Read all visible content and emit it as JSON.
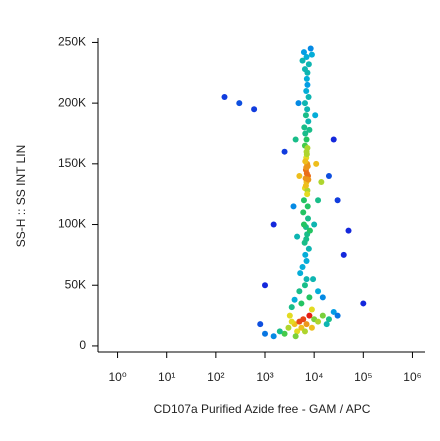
{
  "chart_data": {
    "type": "scatter",
    "x_label": "CD107a Purified Azide free - GAM / APC",
    "y_label": "SS-H :: SS INT LIN",
    "x_scale": "log",
    "xlim": [
      0.4,
      1800000
    ],
    "xticks": [
      {
        "value": 1,
        "label": "10⁰"
      },
      {
        "value": 10,
        "label": "10¹"
      },
      {
        "value": 100,
        "label": "10²"
      },
      {
        "value": 1000,
        "label": "10³"
      },
      {
        "value": 10000,
        "label": "10⁴"
      },
      {
        "value": 100000,
        "label": "10⁵"
      },
      {
        "value": 1000000,
        "label": "10⁶"
      }
    ],
    "ylim": [
      -5000,
      252000
    ],
    "yticks": [
      0,
      {
        "value": 50000,
        "label": "50K"
      },
      {
        "value": 100000,
        "label": "100K"
      },
      {
        "value": 150000,
        "label": "150K"
      },
      {
        "value": 200000,
        "label": "200K"
      },
      {
        "value": 250000,
        "label": "250K"
      }
    ],
    "x": [
      6500,
      7000,
      7500,
      6800,
      7200,
      6900,
      7300,
      6700,
      7100,
      7400,
      6600,
      7000,
      7200,
      6800,
      7600,
      6900,
      7100,
      6500,
      7300,
      7000,
      6000,
      7500,
      6800,
      7200,
      6400,
      7800,
      6600,
      7000,
      5800,
      7400,
      6200,
      8200,
      6900,
      6300,
      7600,
      6800,
      7200,
      6500,
      7700,
      6900,
      7300,
      6600,
      8000,
      7100,
      6200,
      6500,
      7800,
      7000,
      6200,
      8500,
      7300,
      5800,
      9000,
      4500,
      10000,
      5000,
      11000,
      4200,
      12000,
      5200,
      9500,
      4800,
      10500,
      14000,
      3800,
      150,
      300,
      600,
      2500,
      20000,
      30000,
      40000,
      100000,
      1000,
      1500,
      25000,
      50000,
      5000,
      6500,
      8000,
      5500,
      9000,
      4000,
      7000,
      12000,
      3500,
      15000,
      3000,
      4000,
      5000,
      6000,
      4500,
      3500,
      2500,
      7000,
      8000,
      10000,
      12000,
      15000,
      20000,
      25000,
      2000,
      1500,
      1000,
      5500,
      6500,
      9000,
      3200,
      4200,
      18000,
      30000,
      800
    ],
    "y": [
      130000,
      135000,
      140000,
      145000,
      150000,
      155000,
      128000,
      138000,
      142000,
      148000,
      152000,
      160000,
      125000,
      132000,
      137000,
      147000,
      158000,
      165000,
      163000,
      170000,
      110000,
      105000,
      98000,
      92000,
      85000,
      80000,
      75000,
      70000,
      65000,
      115000,
      100000,
      95000,
      88000,
      180000,
      185000,
      190000,
      195000,
      200000,
      205000,
      210000,
      215000,
      175000,
      178000,
      220000,
      120000,
      228000,
      232000,
      238000,
      242000,
      245000,
      225000,
      235000,
      240000,
      90000,
      100000,
      140000,
      150000,
      170000,
      120000,
      60000,
      55000,
      200000,
      190000,
      135000,
      115000,
      205000,
      200000,
      195000,
      160000,
      140000,
      120000,
      75000,
      35000,
      50000,
      100000,
      170000,
      95000,
      45000,
      50000,
      40000,
      35000,
      30000,
      38000,
      55000,
      45000,
      32000,
      40000,
      15000,
      18000,
      20000,
      22000,
      12000,
      20000,
      10000,
      18000,
      25000,
      22000,
      20000,
      25000,
      22000,
      28000,
      12000,
      8000,
      10000,
      15000,
      12000,
      15000,
      25000,
      8000,
      18000,
      25000,
      18000
    ]
  }
}
